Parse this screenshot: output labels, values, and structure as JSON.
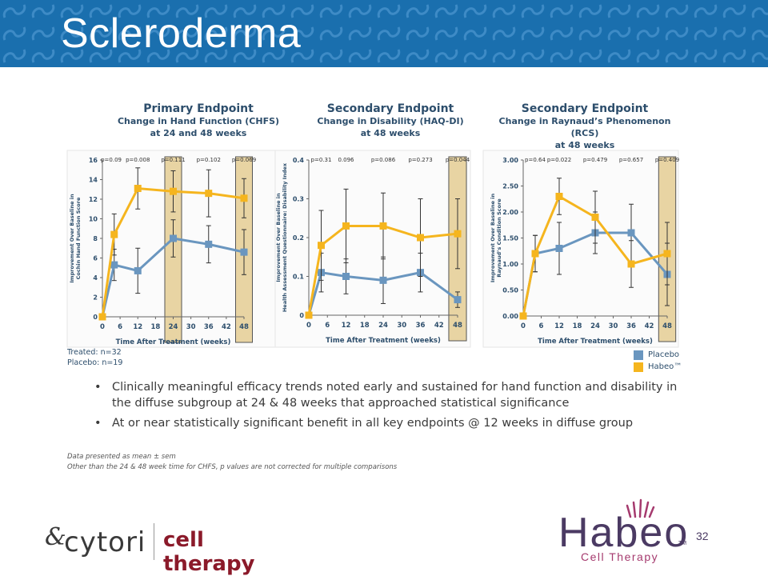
{
  "slide": {
    "title": "Scleroderma",
    "page_number": "32"
  },
  "colors": {
    "header_blue": "#1a6fae",
    "placebo": "#6a96bf",
    "habeo": "#f5b51e",
    "highlight": "#e8d4a3",
    "title_text": "#2d4e6c",
    "cytori_red": "#8b1a2a",
    "habeo_purple": "#4b3a63",
    "habeo_pink": "#a53a6e"
  },
  "charts": [
    {
      "heading": "Primary Endpoint",
      "sub1": "Change in Hand Function (CHFS)",
      "sub2": "at 24 and 48 weeks"
    },
    {
      "heading": "Secondary Endpoint",
      "sub1": "Change in Disability (HAQ-DI)",
      "sub2": "at 48 weeks"
    },
    {
      "heading": "Secondary Endpoint",
      "sub1": "Change in Raynaud’s Phenomenon (RCS)",
      "sub2": "at 48 weeks"
    }
  ],
  "chart_data": [
    {
      "type": "line",
      "xlabel": "Time After Treatment (weeks)",
      "ylabel_lines": [
        "Improvement Over Baseline in",
        "Cochin Hand Function Score"
      ],
      "ylim": [
        0,
        16
      ],
      "yticks": [
        "0",
        "2",
        "4",
        "6",
        "8",
        "10",
        "12",
        "14",
        "16"
      ],
      "xlim": [
        0,
        48
      ],
      "xticks": [
        "0",
        "6",
        "12",
        "18",
        "24",
        "30",
        "36",
        "42",
        "48"
      ],
      "highlight_weeks": [
        24,
        48
      ],
      "pvalues": [
        {
          "x": 3,
          "label": "p=0.09"
        },
        {
          "x": 12,
          "label": "p=0.008"
        },
        {
          "x": 24,
          "label": "p=0.111"
        },
        {
          "x": 36,
          "label": "p=0.102"
        },
        {
          "x": 48,
          "label": "p=0.069"
        }
      ],
      "series": [
        {
          "name": "Placebo",
          "x": [
            0,
            4,
            12,
            24,
            36,
            48
          ],
          "y": [
            0,
            5.3,
            4.7,
            8.0,
            7.4,
            6.6
          ],
          "err": [
            0,
            1.6,
            2.3,
            1.9,
            1.9,
            2.3
          ]
        },
        {
          "name": "Habeo™",
          "x": [
            0,
            4,
            12,
            24,
            36,
            48
          ],
          "y": [
            0,
            8.4,
            13.1,
            12.8,
            12.6,
            12.1
          ],
          "err": [
            0,
            2.1,
            2.1,
            2.1,
            2.4,
            2.0
          ]
        }
      ]
    },
    {
      "type": "line",
      "xlabel": "Time After Treatment (weeks)",
      "ylabel_lines": [
        "Improvement Over Baseline in",
        "Health Assessment Questionnaire: Disability Index"
      ],
      "ylim": [
        0,
        0.4
      ],
      "yticks": [
        "0",
        "0.1",
        "0.2",
        "0.3",
        "0.4"
      ],
      "xlim": [
        0,
        48
      ],
      "xticks": [
        "0",
        "6",
        "12",
        "18",
        "24",
        "30",
        "36",
        "42",
        "48"
      ],
      "highlight_weeks": [
        48
      ],
      "pvalues": [
        {
          "x": 4,
          "label": "p=0.31"
        },
        {
          "x": 12,
          "label": "0.096"
        },
        {
          "x": 24,
          "label": "p=0.086"
        },
        {
          "x": 36,
          "label": "p=0.273"
        },
        {
          "x": 48,
          "label": "p=0.044"
        }
      ],
      "series": [
        {
          "name": "Placebo",
          "x": [
            0,
            4,
            12,
            24,
            36,
            48
          ],
          "y": [
            0,
            0.11,
            0.1,
            0.09,
            0.11,
            0.04
          ],
          "err": [
            0,
            0.05,
            0.045,
            0.06,
            0.05,
            0.02
          ]
        },
        {
          "name": "Habeo™",
          "x": [
            0,
            4,
            12,
            24,
            36,
            48
          ],
          "y": [
            0,
            0.18,
            0.23,
            0.23,
            0.2,
            0.21
          ],
          "err": [
            0,
            0.09,
            0.095,
            0.085,
            0.1,
            0.09
          ]
        }
      ]
    },
    {
      "type": "line",
      "xlabel": "Time After Treatment (weeks)",
      "ylabel_lines": [
        "Improvement Over Baseline in",
        "Raynaud’s Condition Score"
      ],
      "ylim": [
        0,
        3
      ],
      "yticks": [
        "0.00",
        "0.50",
        "1.00",
        "1.50",
        "2.00",
        "2.50",
        "3.00"
      ],
      "xlim": [
        0,
        48
      ],
      "xticks": [
        "0",
        "6",
        "12",
        "18",
        "24",
        "30",
        "36",
        "42",
        "48"
      ],
      "highlight_weeks": [
        48
      ],
      "pvalues": [
        {
          "x": 4,
          "label": "p=0.64"
        },
        {
          "x": 12,
          "label": "p=0.022"
        },
        {
          "x": 24,
          "label": "p=0.479"
        },
        {
          "x": 36,
          "label": "p=0.657"
        },
        {
          "x": 48,
          "label": "p=0.409"
        }
      ],
      "series": [
        {
          "name": "Placebo",
          "x": [
            0,
            4,
            12,
            24,
            36,
            48
          ],
          "y": [
            0,
            1.2,
            1.3,
            1.6,
            1.6,
            0.8
          ],
          "err": [
            0,
            0.35,
            0.5,
            0.4,
            0.55,
            0.6
          ]
        },
        {
          "name": "Habeo™",
          "x": [
            0,
            4,
            12,
            24,
            36,
            48
          ],
          "y": [
            0,
            1.2,
            2.3,
            1.9,
            1.0,
            1.2
          ],
          "err": [
            0,
            0.35,
            0.35,
            0.5,
            0.45,
            0.6
          ]
        }
      ]
    }
  ],
  "sample_sizes": {
    "treated": "Treated: n=32",
    "placebo": "Placebo: n=19"
  },
  "legend": {
    "placebo": "Placebo",
    "habeo": "Habeo™"
  },
  "bullets": [
    "Clinically meaningful efficacy trends noted early and sustained for hand function and disability in the diffuse subgroup at 24 & 48 weeks that approached statistical significance",
    "At or near statistically significant benefit in all key endpoints @ 12 weeks in diffuse group"
  ],
  "bullet_symbol": "•",
  "notes": [
    "Data presented as mean ± sem",
    "Other than the 24 & 48 week time for CHFS, p values are not corrected for multiple comparisons"
  ],
  "logos": {
    "cytori_name": "cytori",
    "cytori_tagline": "cell therapy",
    "cytori_mark": "&",
    "habeo_name": "Habeo",
    "habeo_tm": "TM",
    "habeo_sub": "Cell Therapy"
  }
}
